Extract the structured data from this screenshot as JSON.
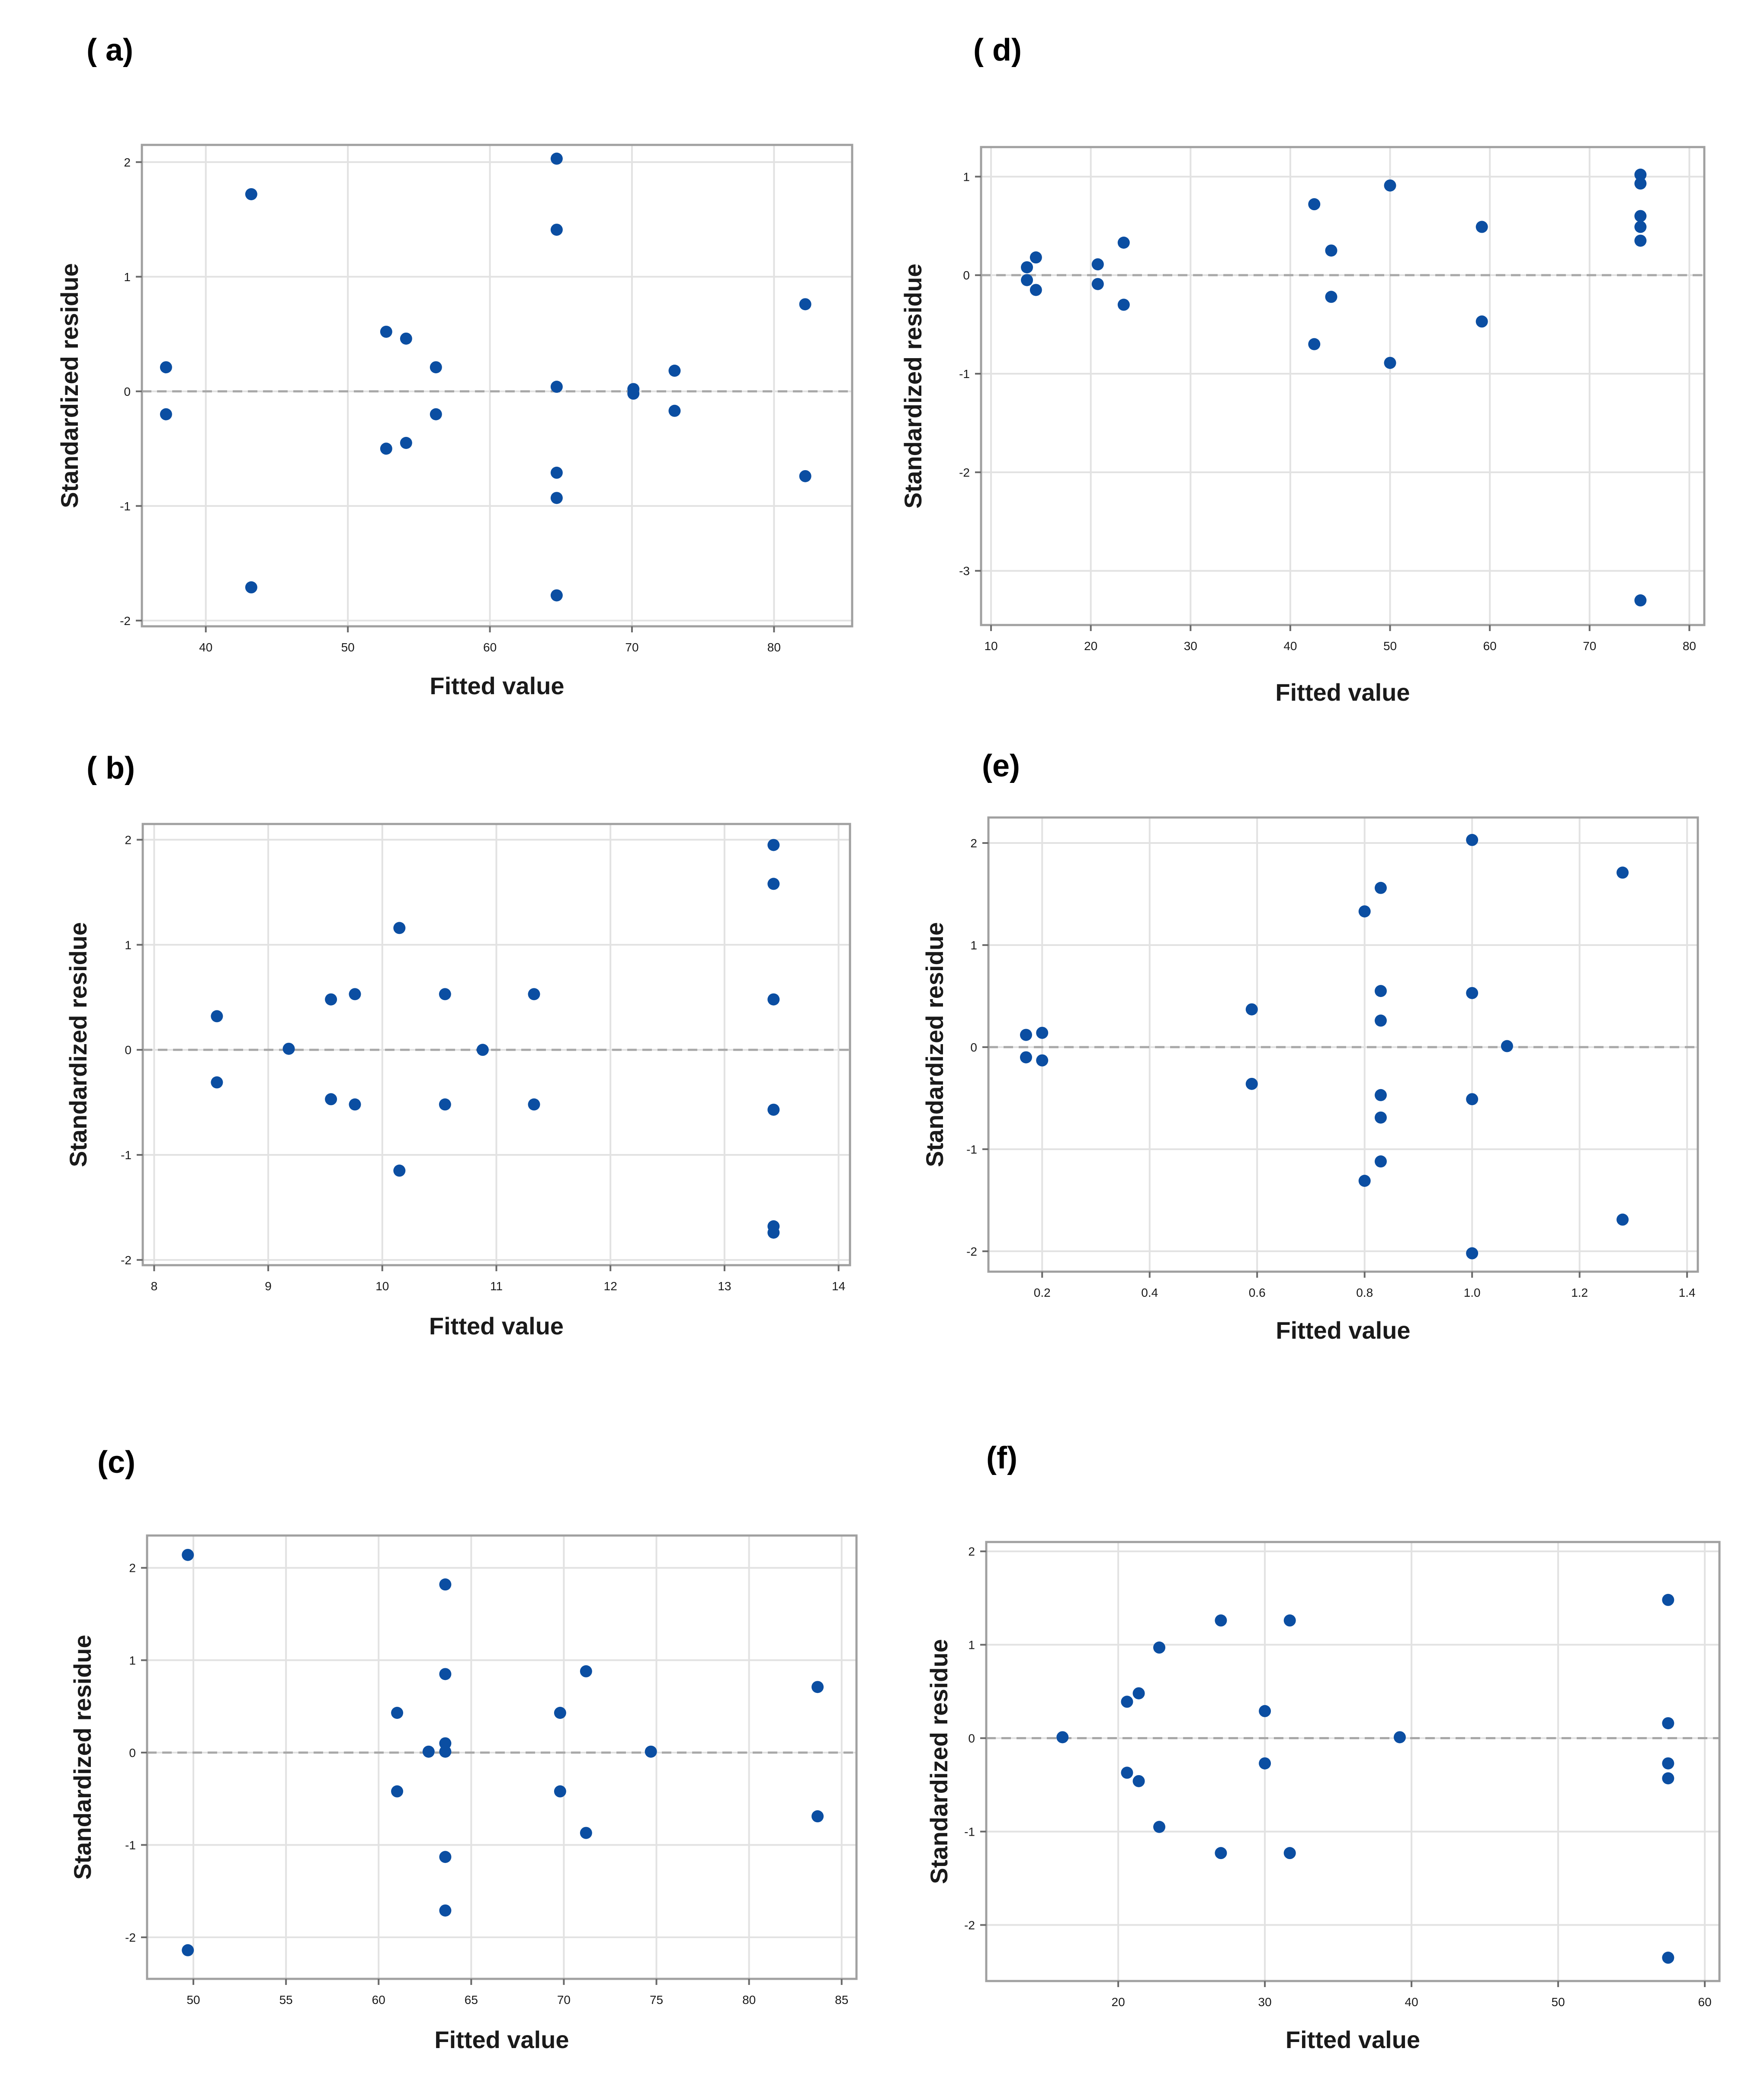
{
  "chart_data": [
    {
      "panel": "( a)",
      "type": "scatter",
      "xlabel": "Fitted value",
      "ylabel": "Standardized residue",
      "xlim": [
        35.5,
        85.5
      ],
      "ylim": [
        -2.05,
        2.15
      ],
      "xticks": [
        40,
        50,
        60,
        70,
        80
      ],
      "yticks": [
        -2,
        -1,
        0,
        1,
        2
      ],
      "reference_line": 0,
      "points": [
        {
          "x": 37.2,
          "y": 0.21
        },
        {
          "x": 37.2,
          "y": -0.2
        },
        {
          "x": 43.2,
          "y": 1.72
        },
        {
          "x": 43.2,
          "y": -1.71
        },
        {
          "x": 52.7,
          "y": 0.52
        },
        {
          "x": 52.7,
          "y": -0.5
        },
        {
          "x": 54.1,
          "y": 0.46
        },
        {
          "x": 54.1,
          "y": -0.45
        },
        {
          "x": 56.2,
          "y": 0.21
        },
        {
          "x": 56.2,
          "y": -0.2
        },
        {
          "x": 64.7,
          "y": 2.03
        },
        {
          "x": 64.7,
          "y": 1.41
        },
        {
          "x": 64.7,
          "y": 0.04
        },
        {
          "x": 64.7,
          "y": -0.71
        },
        {
          "x": 64.7,
          "y": -0.93
        },
        {
          "x": 64.7,
          "y": -1.78
        },
        {
          "x": 70.1,
          "y": 0.02
        },
        {
          "x": 70.1,
          "y": -0.02
        },
        {
          "x": 73.0,
          "y": 0.18
        },
        {
          "x": 73.0,
          "y": -0.17
        },
        {
          "x": 82.2,
          "y": 0.76
        },
        {
          "x": 82.2,
          "y": -0.74
        }
      ]
    },
    {
      "panel": "( b)",
      "type": "scatter",
      "xlabel": "Fitted value",
      "ylabel": "Standardized residue",
      "xlim": [
        7.9,
        14.1
      ],
      "ylim": [
        -2.05,
        2.15
      ],
      "xticks": [
        8,
        9,
        10,
        11,
        12,
        13,
        14
      ],
      "yticks": [
        -2,
        -1,
        0,
        1,
        2
      ],
      "reference_line": 0,
      "points": [
        {
          "x": 8.55,
          "y": 0.32
        },
        {
          "x": 8.55,
          "y": -0.31
        },
        {
          "x": 9.18,
          "y": 0.01
        },
        {
          "x": 9.55,
          "y": 0.48
        },
        {
          "x": 9.55,
          "y": -0.47
        },
        {
          "x": 9.76,
          "y": 0.53
        },
        {
          "x": 9.76,
          "y": -0.52
        },
        {
          "x": 10.15,
          "y": 1.16
        },
        {
          "x": 10.15,
          "y": -1.15
        },
        {
          "x": 10.55,
          "y": 0.53
        },
        {
          "x": 10.55,
          "y": -0.52
        },
        {
          "x": 10.88,
          "y": 0.0
        },
        {
          "x": 11.33,
          "y": 0.53
        },
        {
          "x": 11.33,
          "y": -0.52
        },
        {
          "x": 13.43,
          "y": 1.95
        },
        {
          "x": 13.43,
          "y": 1.58
        },
        {
          "x": 13.43,
          "y": 0.48
        },
        {
          "x": 13.43,
          "y": -0.57
        },
        {
          "x": 13.43,
          "y": -1.68
        },
        {
          "x": 13.43,
          "y": -1.74
        }
      ]
    },
    {
      "panel": "(c)",
      "type": "scatter",
      "xlabel": "Fitted value",
      "ylabel": "Standardized residue",
      "xlim": [
        47.5,
        85.8
      ],
      "ylim": [
        -2.45,
        2.35
      ],
      "xticks": [
        50,
        55,
        60,
        65,
        70,
        75,
        80,
        85
      ],
      "yticks": [
        -2,
        -1,
        0,
        1,
        2
      ],
      "reference_line": 0,
      "points": [
        {
          "x": 49.7,
          "y": 2.14
        },
        {
          "x": 49.7,
          "y": -2.14
        },
        {
          "x": 61.0,
          "y": 0.43
        },
        {
          "x": 61.0,
          "y": -0.42
        },
        {
          "x": 62.7,
          "y": 0.01
        },
        {
          "x": 63.6,
          "y": 1.82
        },
        {
          "x": 63.6,
          "y": 0.85
        },
        {
          "x": 63.6,
          "y": 0.1
        },
        {
          "x": 63.6,
          "y": 0.01
        },
        {
          "x": 63.6,
          "y": -1.13
        },
        {
          "x": 63.6,
          "y": -1.71
        },
        {
          "x": 69.8,
          "y": 0.43
        },
        {
          "x": 69.8,
          "y": -0.42
        },
        {
          "x": 71.2,
          "y": 0.88
        },
        {
          "x": 71.2,
          "y": -0.87
        },
        {
          "x": 74.7,
          "y": 0.01
        },
        {
          "x": 83.7,
          "y": 0.71
        },
        {
          "x": 83.7,
          "y": -0.69
        }
      ]
    },
    {
      "panel": "( d)",
      "type": "scatter",
      "xlabel": "Fitted value",
      "ylabel": "Standardized residue",
      "xlim": [
        9.0,
        81.5
      ],
      "ylim": [
        -3.55,
        1.3
      ],
      "xticks": [
        10,
        20,
        30,
        40,
        50,
        60,
        70,
        80
      ],
      "yticks": [
        -3,
        -2,
        -1,
        0,
        1
      ],
      "reference_line": 0,
      "points": [
        {
          "x": 13.6,
          "y": 0.08
        },
        {
          "x": 13.6,
          "y": -0.05
        },
        {
          "x": 14.5,
          "y": 0.18
        },
        {
          "x": 14.5,
          "y": -0.15
        },
        {
          "x": 20.7,
          "y": 0.11
        },
        {
          "x": 20.7,
          "y": -0.09
        },
        {
          "x": 23.3,
          "y": 0.33
        },
        {
          "x": 23.3,
          "y": -0.3
        },
        {
          "x": 42.4,
          "y": 0.72
        },
        {
          "x": 42.4,
          "y": -0.7
        },
        {
          "x": 44.1,
          "y": 0.25
        },
        {
          "x": 44.1,
          "y": -0.22
        },
        {
          "x": 50.0,
          "y": 0.91
        },
        {
          "x": 50.0,
          "y": -0.89
        },
        {
          "x": 59.2,
          "y": 0.49
        },
        {
          "x": 59.2,
          "y": -0.47
        },
        {
          "x": 75.1,
          "y": 1.02
        },
        {
          "x": 75.1,
          "y": 0.93
        },
        {
          "x": 75.1,
          "y": 0.6
        },
        {
          "x": 75.1,
          "y": 0.49
        },
        {
          "x": 75.1,
          "y": 0.35
        },
        {
          "x": 75.1,
          "y": -3.3
        }
      ]
    },
    {
      "panel": "(e)",
      "type": "scatter",
      "xlabel": "Fitted value",
      "ylabel": "Standardized residue",
      "xlim": [
        0.1,
        1.42
      ],
      "ylim": [
        -2.2,
        2.25
      ],
      "xticks": [
        0.2,
        0.4,
        0.6,
        0.8,
        1.0,
        1.2,
        1.4
      ],
      "xtick_labels": [
        "0.2",
        "0.4",
        "0.6",
        "0.8",
        "1.0",
        "1.2",
        "1.4"
      ],
      "yticks": [
        -2,
        -1,
        0,
        1,
        2
      ],
      "reference_line": 0,
      "points": [
        {
          "x": 0.17,
          "y": 0.12
        },
        {
          "x": 0.17,
          "y": -0.1
        },
        {
          "x": 0.2,
          "y": 0.14
        },
        {
          "x": 0.2,
          "y": -0.13
        },
        {
          "x": 0.59,
          "y": 0.37
        },
        {
          "x": 0.59,
          "y": -0.36
        },
        {
          "x": 0.8,
          "y": 1.33
        },
        {
          "x": 0.8,
          "y": -1.31
        },
        {
          "x": 0.83,
          "y": 1.56
        },
        {
          "x": 0.83,
          "y": 0.55
        },
        {
          "x": 0.83,
          "y": 0.26
        },
        {
          "x": 0.83,
          "y": -0.47
        },
        {
          "x": 0.83,
          "y": -0.69
        },
        {
          "x": 0.83,
          "y": -1.12
        },
        {
          "x": 1.0,
          "y": 2.03
        },
        {
          "x": 1.0,
          "y": 0.53
        },
        {
          "x": 1.0,
          "y": -0.51
        },
        {
          "x": 1.0,
          "y": -2.02
        },
        {
          "x": 1.065,
          "y": 0.01
        },
        {
          "x": 1.28,
          "y": 1.71
        },
        {
          "x": 1.28,
          "y": -1.69
        }
      ]
    },
    {
      "panel": "(f)",
      "type": "scatter",
      "xlabel": "Fitted value",
      "ylabel": "Standardized residue",
      "xlim": [
        11.0,
        61.0
      ],
      "ylim": [
        -2.6,
        2.1
      ],
      "xticks": [
        20,
        30,
        40,
        50,
        60
      ],
      "yticks": [
        -2,
        -1,
        0,
        1,
        2
      ],
      "reference_line": 0,
      "points": [
        {
          "x": 16.2,
          "y": 0.01
        },
        {
          "x": 20.6,
          "y": 0.39
        },
        {
          "x": 20.6,
          "y": -0.37
        },
        {
          "x": 21.4,
          "y": 0.48
        },
        {
          "x": 21.4,
          "y": -0.46
        },
        {
          "x": 22.8,
          "y": 0.97
        },
        {
          "x": 22.8,
          "y": -0.95
        },
        {
          "x": 27.0,
          "y": 1.26
        },
        {
          "x": 27.0,
          "y": -1.23
        },
        {
          "x": 30.0,
          "y": 0.29
        },
        {
          "x": 30.0,
          "y": -0.27
        },
        {
          "x": 31.7,
          "y": 1.26
        },
        {
          "x": 31.7,
          "y": -1.23
        },
        {
          "x": 39.2,
          "y": 0.01
        },
        {
          "x": 57.5,
          "y": 1.48
        },
        {
          "x": 57.5,
          "y": 0.16
        },
        {
          "x": 57.5,
          "y": -0.27
        },
        {
          "x": 57.5,
          "y": -0.43
        },
        {
          "x": 57.5,
          "y": -2.35
        }
      ]
    }
  ]
}
